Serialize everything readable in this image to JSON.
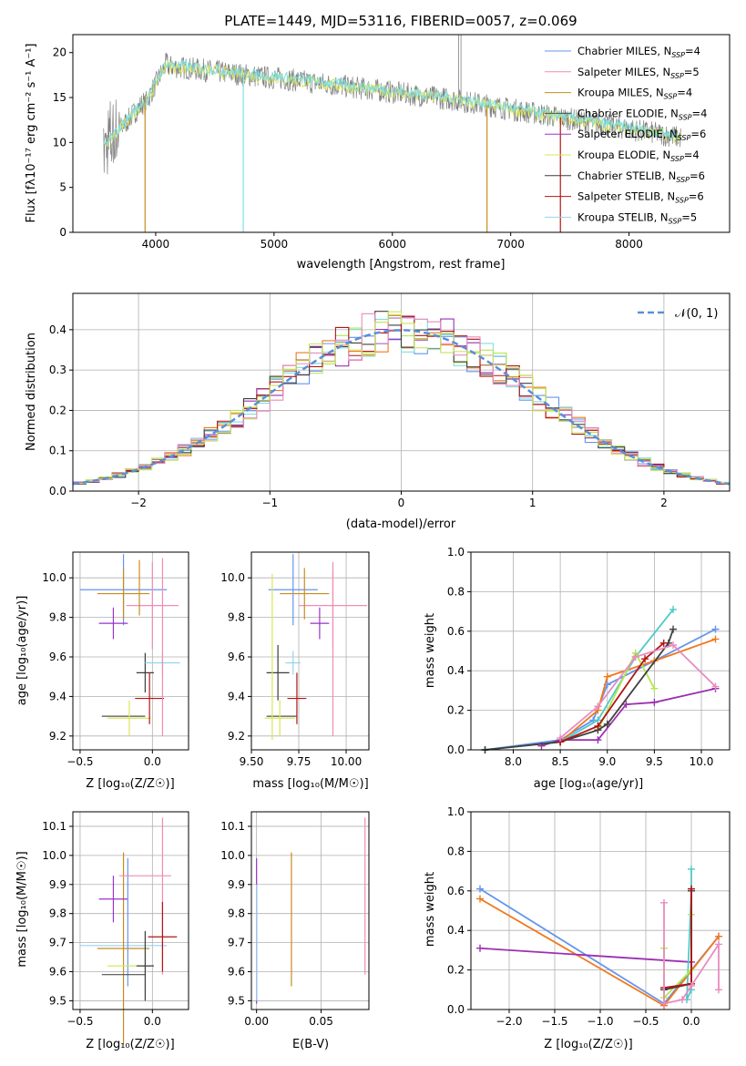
{
  "colors": [
    "#6495ED",
    "#F08CB4",
    "#C88C1E",
    "#505050",
    "#9932CC",
    "#DAE65A",
    "#3C3C3C",
    "#B41414",
    "#96D2F0"
  ],
  "palette10": [
    "#6495ED",
    "#F0781E",
    "#9B30B0",
    "#50C8C8",
    "#B4E650",
    "#404040",
    "#B41414",
    "#E88CC0",
    "#C8C864",
    "#96D2F0"
  ],
  "spectrum": {
    "title": "PLATE=1449, MJD=53116, FIBERID=0057, z=0.069",
    "xlabel": "wavelength [Angstrom, rest frame]",
    "ylabel": "Flux [fλ10⁻¹⁷ erg cm⁻² s⁻¹ A⁻¹]",
    "xlim": [
      3300,
      8850
    ],
    "ylim": [
      0,
      22
    ],
    "xticks": [
      4000,
      5000,
      6000,
      7000,
      8000
    ],
    "yticks": [
      0,
      5,
      10,
      15,
      20
    ],
    "legend": [
      {
        "name": "Chabrier MILES",
        "n": "4"
      },
      {
        "name": "Salpeter MILES",
        "n": "5"
      },
      {
        "name": "Kroupa MILES",
        "n": "4"
      },
      {
        "name": "Chabrier ELODIE",
        "n": "4"
      },
      {
        "name": "Salpeter ELODIE",
        "n": "6"
      },
      {
        "name": "Kroupa ELODIE",
        "n": "4"
      },
      {
        "name": "Chabrier STELIB",
        "n": "6"
      },
      {
        "name": "Salpeter STELIB",
        "n": "6"
      },
      {
        "name": "Kroupa STELIB",
        "n": "5"
      }
    ],
    "legend_nssp_prefix": "N",
    "legend_nssp_sub": "SSP",
    "legend_nssp_eq": "="
  },
  "residuals": {
    "xlabel": "(data-model)/error",
    "ylabel": "Normed distribution",
    "xlim": [
      -2.5,
      2.5
    ],
    "ylim": [
      0,
      0.49
    ],
    "xticks": [
      -2,
      -1,
      0,
      1,
      2
    ],
    "yticks": [
      0.0,
      0.1,
      0.2,
      0.3,
      0.4
    ],
    "legend": "𝒩(0, 1)"
  },
  "age_vs_Z": {
    "xlabel": "Z [log₁₀(Z/Z☉)]",
    "ylabel": "age  [log₁₀(age/yr)]",
    "xlim": [
      -0.55,
      0.25
    ],
    "ylim": [
      9.13,
      10.13
    ],
    "xticks": [
      -0.5,
      0.0
    ],
    "yticks": [
      9.2,
      9.4,
      9.6,
      9.8,
      10.0
    ],
    "points": [
      {
        "x": -0.2,
        "y": 9.94,
        "xe": 0.3,
        "ye": 0.18,
        "c": 0
      },
      {
        "x": 0.0,
        "y": 9.86,
        "xe": 0.18,
        "ye": 0.22,
        "c": 1
      },
      {
        "x": -0.2,
        "y": 9.92,
        "xe": 0.18,
        "ye": 0.13,
        "c": 2
      },
      {
        "x": -0.27,
        "y": 9.77,
        "xe": 0.1,
        "ye": 0.08,
        "c": 4
      },
      {
        "x": -0.2,
        "y": 9.3,
        "xe": 0.15,
        "ye": 0.0,
        "c": 3
      },
      {
        "x": -0.16,
        "y": 9.29,
        "xe": 0.15,
        "ye": 0.09,
        "c": 5
      },
      {
        "x": -0.05,
        "y": 9.52,
        "xe": 0.06,
        "ye": 0.1,
        "c": 6
      },
      {
        "x": -0.02,
        "y": 9.39,
        "xe": 0.1,
        "ye": 0.13,
        "c": 7
      },
      {
        "x": 0.07,
        "y": 9.57,
        "xe": 0.12,
        "ye": 0.06,
        "c": 8
      },
      {
        "x": -0.09,
        "y": 9.95,
        "xe": 0.0,
        "ye": 0.14,
        "c": 2
      },
      {
        "x": 0.07,
        "y": 9.65,
        "xe": 0.0,
        "ye": 0.45,
        "c": 1
      }
    ]
  },
  "age_vs_mass": {
    "xlabel": "mass [log₁₀(M/M☉)]",
    "xlim": [
      9.5,
      10.12
    ],
    "ylim": [
      9.13,
      10.13
    ],
    "xticks": [
      9.5,
      9.75,
      10.0
    ],
    "xtick_labels": [
      "9.50",
      "9.75",
      "10.00"
    ],
    "yticks": [
      9.2,
      9.4,
      9.6,
      9.8,
      10.0
    ],
    "points": [
      {
        "x": 9.72,
        "y": 9.94,
        "xe": 0.13,
        "ye": 0.18,
        "c": 0
      },
      {
        "x": 9.93,
        "y": 9.86,
        "xe": 0.18,
        "ye": 0.22,
        "c": 1
      },
      {
        "x": 9.78,
        "y": 9.92,
        "xe": 0.13,
        "ye": 0.13,
        "c": 2
      },
      {
        "x": 9.86,
        "y": 9.77,
        "xe": 0.05,
        "ye": 0.08,
        "c": 4
      },
      {
        "x": 9.66,
        "y": 9.3,
        "xe": 0.08,
        "ye": 0.0,
        "c": 3
      },
      {
        "x": 9.64,
        "y": 9.52,
        "xe": 0.06,
        "ye": 0.14,
        "c": 6
      },
      {
        "x": 9.65,
        "y": 9.29,
        "xe": 0.08,
        "ye": 0.09,
        "c": 5
      },
      {
        "x": 9.74,
        "y": 9.39,
        "xe": 0.05,
        "ye": 0.13,
        "c": 7
      },
      {
        "x": 9.72,
        "y": 9.57,
        "xe": 0.04,
        "ye": 0.06,
        "c": 8
      },
      {
        "x": 9.61,
        "y": 9.6,
        "xe": 0.0,
        "ye": 0.42,
        "c": 5
      },
      {
        "x": 9.93,
        "y": 9.62,
        "xe": 0.0,
        "ye": 0.42,
        "c": 1
      }
    ]
  },
  "mw_vs_age": {
    "xlabel": "age  [log₁₀(age/yr)]",
    "ylabel": "mass weight",
    "xlim": [
      7.55,
      10.3
    ],
    "ylim": [
      0,
      1.0
    ],
    "xticks": [
      8.0,
      8.5,
      9.0,
      9.5,
      10.0
    ],
    "yticks": [
      0.0,
      0.2,
      0.4,
      0.6,
      0.8,
      1.0
    ],
    "series": [
      {
        "c": 0,
        "x": [
          7.7,
          8.5,
          8.85,
          9.0,
          9.5,
          10.15
        ],
        "y": [
          0.0,
          0.05,
          0.15,
          0.33,
          0.45,
          0.61
        ]
      },
      {
        "c": 1,
        "x": [
          7.7,
          8.5,
          8.9,
          9.0,
          9.5,
          10.15
        ],
        "y": [
          0.0,
          0.04,
          0.2,
          0.37,
          0.45,
          0.56
        ]
      },
      {
        "c": 2,
        "x": [
          8.3,
          8.5,
          8.9,
          9.2,
          9.5,
          10.15
        ],
        "y": [
          0.02,
          0.05,
          0.05,
          0.23,
          0.24,
          0.31
        ]
      },
      {
        "c": 3,
        "x": [
          7.7,
          8.5,
          8.9,
          9.3,
          9.7
        ],
        "y": [
          0.0,
          0.04,
          0.15,
          0.47,
          0.71
        ]
      },
      {
        "c": 4,
        "x": [
          8.5,
          8.9,
          9.3,
          9.5
        ],
        "y": [
          0.04,
          0.1,
          0.49,
          0.31
        ]
      },
      {
        "c": 5,
        "x": [
          7.7,
          8.5,
          8.9,
          9.0,
          9.65,
          9.7
        ],
        "y": [
          0.0,
          0.04,
          0.1,
          0.13,
          0.54,
          0.61
        ]
      },
      {
        "c": 6,
        "x": [
          8.5,
          8.9,
          9.4,
          9.6
        ],
        "y": [
          0.04,
          0.12,
          0.46,
          0.54
        ]
      },
      {
        "c": 7,
        "x": [
          8.5,
          8.9,
          9.3,
          9.7,
          10.15
        ],
        "y": [
          0.06,
          0.22,
          0.47,
          0.53,
          0.32
        ]
      }
    ]
  },
  "mass_vs_Z": {
    "xlabel": "Z [log₁₀(Z/Z☉)]",
    "ylabel": "mass [log₁₀(M/M☉)]",
    "xlim": [
      -0.55,
      0.25
    ],
    "ylim": [
      9.47,
      10.15
    ],
    "xticks": [
      -0.5,
      0.0
    ],
    "yticks": [
      9.5,
      9.6,
      9.7,
      9.8,
      9.9,
      10.0,
      10.1
    ],
    "points": [
      {
        "x": -0.2,
        "y": 9.69,
        "xe": 0.3,
        "ye": 0.0,
        "c": 8
      },
      {
        "x": -0.2,
        "y": 9.68,
        "xe": 0.18,
        "ye": 0.33,
        "c": 2
      },
      {
        "x": -0.27,
        "y": 9.85,
        "xe": 0.1,
        "ye": 0.08,
        "c": 4
      },
      {
        "x": -0.17,
        "y": 9.77,
        "xe": 0.0,
        "ye": 0.22,
        "c": 0
      },
      {
        "x": -0.05,
        "y": 9.93,
        "xe": 0.18,
        "ye": 0.0,
        "c": 1
      },
      {
        "x": 0.07,
        "y": 9.86,
        "xe": 0.0,
        "ye": 0.27,
        "c": 1
      },
      {
        "x": -0.16,
        "y": 9.62,
        "xe": 0.15,
        "ye": 0.0,
        "c": 5
      },
      {
        "x": -0.2,
        "y": 9.59,
        "xe": 0.15,
        "ye": 0.0,
        "c": 3
      },
      {
        "x": -0.05,
        "y": 9.62,
        "xe": 0.06,
        "ye": 0.12,
        "c": 6
      },
      {
        "x": 0.07,
        "y": 9.72,
        "xe": 0.1,
        "ye": 0.12,
        "c": 7
      }
    ]
  },
  "mass_vs_ebv": {
    "xlabel": "E(B-V)",
    "xlim": [
      -0.004,
      0.087
    ],
    "ylim": [
      9.47,
      10.15
    ],
    "xticks": [
      0.0,
      0.05
    ],
    "xtick_labels": [
      "0.00",
      "0.05"
    ],
    "yticks": [
      9.5,
      9.6,
      9.7,
      9.8,
      9.9,
      10.0,
      10.1
    ],
    "points": [
      {
        "x": 0.0,
        "y": 9.74,
        "xe": 0.0,
        "ye": 0.25,
        "c": 4
      },
      {
        "x": 0.0,
        "y": 9.7,
        "xe": 0.0,
        "ye": 0.2,
        "c": 8
      },
      {
        "x": 0.027,
        "y": 9.78,
        "xe": 0.0,
        "ye": 0.23,
        "c": 2
      },
      {
        "x": 0.084,
        "y": 9.86,
        "xe": 0.0,
        "ye": 0.27,
        "c": 1
      }
    ]
  },
  "mw_vs_Z": {
    "xlabel": "Z [log₁₀(Z/Z☉)]",
    "ylabel": "mass weight",
    "xlim": [
      -2.42,
      0.42
    ],
    "ylim": [
      0,
      1.0
    ],
    "xticks": [
      -2.0,
      -1.5,
      -1.0,
      -0.5,
      0.0
    ],
    "yticks": [
      0.0,
      0.2,
      0.4,
      0.6,
      0.8,
      1.0
    ],
    "series": [
      {
        "c": 0,
        "x": [
          -2.32,
          -0.3,
          0.3
        ],
        "y": [
          0.61,
          0.03,
          0.37
        ]
      },
      {
        "c": 1,
        "x": [
          -2.32,
          -0.3,
          0.3
        ],
        "y": [
          0.56,
          0.02,
          0.37
        ]
      },
      {
        "c": 2,
        "x": [
          -2.32,
          0.0
        ],
        "y": [
          0.31,
          0.24
        ]
      },
      {
        "c": 3,
        "x": [
          0.0,
          0.0,
          -0.05,
          0.0
        ],
        "y": [
          0.71,
          0.1,
          0.05,
          0.6
        ]
      },
      {
        "c": 4,
        "x": [
          -0.3,
          -0.3,
          0.0,
          0.0
        ],
        "y": [
          0.31,
          0.06,
          0.2,
          0.48
        ]
      },
      {
        "c": 5,
        "x": [
          -0.3,
          0.0,
          0.0
        ],
        "y": [
          0.1,
          0.13,
          0.6
        ]
      },
      {
        "c": 6,
        "x": [
          -0.3,
          0.0,
          0.0
        ],
        "y": [
          0.11,
          0.13,
          0.61
        ]
      },
      {
        "c": 7,
        "x": [
          -0.3,
          -0.3,
          -0.1,
          0.0,
          0.3,
          0.3
        ],
        "y": [
          0.54,
          0.03,
          0.05,
          0.12,
          0.33,
          0.1
        ]
      }
    ]
  }
}
